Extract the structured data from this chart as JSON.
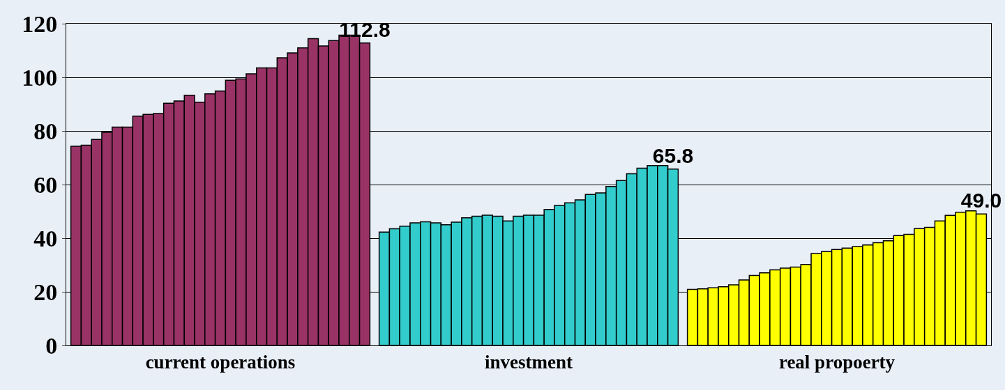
{
  "chart_data": {
    "type": "bar",
    "categories": [
      "current operations",
      "investment",
      "real propoerty"
    ],
    "ylim": [
      0,
      120
    ],
    "yticks": [
      0,
      20,
      40,
      60,
      80,
      100,
      120
    ],
    "grid": "y",
    "series": [
      {
        "colors": [
          "#993366",
          "#33cccc",
          "#ffff00"
        ],
        "values": [
          74.3,
          42.3,
          20.9
        ]
      },
      {
        "colors": [
          "#993366",
          "#33cccc",
          "#ffff00"
        ],
        "values": [
          74.7,
          43.5,
          21.1
        ]
      },
      {
        "colors": [
          "#993366",
          "#33cccc",
          "#ffff00"
        ],
        "values": [
          76.8,
          44.5,
          21.5
        ]
      },
      {
        "colors": [
          "#993366",
          "#33cccc",
          "#ffff00"
        ],
        "values": [
          79.5,
          45.7,
          21.9
        ]
      },
      {
        "colors": [
          "#993366",
          "#33cccc",
          "#ffff00"
        ],
        "values": [
          81.4,
          46.1,
          22.6
        ]
      },
      {
        "colors": [
          "#993366",
          "#33cccc",
          "#ffff00"
        ],
        "values": [
          81.4,
          45.7,
          24.4
        ]
      },
      {
        "colors": [
          "#993366",
          "#33cccc",
          "#ffff00"
        ],
        "values": [
          85.5,
          45.0,
          26.1
        ]
      },
      {
        "colors": [
          "#993366",
          "#33cccc",
          "#ffff00"
        ],
        "values": [
          86.2,
          46.0,
          27.1
        ]
      },
      {
        "colors": [
          "#993366",
          "#33cccc",
          "#ffff00"
        ],
        "values": [
          86.5,
          47.6,
          28.2
        ]
      },
      {
        "colors": [
          "#993366",
          "#33cccc",
          "#ffff00"
        ],
        "values": [
          90.3,
          48.2,
          28.8
        ]
      },
      {
        "colors": [
          "#993366",
          "#33cccc",
          "#ffff00"
        ],
        "values": [
          91.2,
          48.6,
          29.2
        ]
      },
      {
        "colors": [
          "#993366",
          "#33cccc",
          "#ffff00"
        ],
        "values": [
          93.3,
          48.2,
          30.2
        ]
      },
      {
        "colors": [
          "#993366",
          "#33cccc",
          "#ffff00"
        ],
        "values": [
          90.7,
          46.4,
          34.3
        ]
      },
      {
        "colors": [
          "#993366",
          "#33cccc",
          "#ffff00"
        ],
        "values": [
          93.8,
          48.2,
          35.0
        ]
      },
      {
        "colors": [
          "#993366",
          "#33cccc",
          "#ffff00"
        ],
        "values": [
          94.9,
          48.6,
          35.8
        ]
      },
      {
        "colors": [
          "#993366",
          "#33cccc",
          "#ffff00"
        ],
        "values": [
          98.9,
          48.6,
          36.3
        ]
      },
      {
        "colors": [
          "#993366",
          "#33cccc",
          "#ffff00"
        ],
        "values": [
          99.4,
          50.7,
          36.9
        ]
      },
      {
        "colors": [
          "#993366",
          "#33cccc",
          "#ffff00"
        ],
        "values": [
          101.3,
          52.2,
          37.5
        ]
      },
      {
        "colors": [
          "#993366",
          "#33cccc",
          "#ffff00"
        ],
        "values": [
          103.5,
          53.2,
          38.3
        ]
      },
      {
        "colors": [
          "#993366",
          "#33cccc",
          "#ffff00"
        ],
        "values": [
          103.5,
          54.3,
          39.0
        ]
      },
      {
        "colors": [
          "#993366",
          "#33cccc",
          "#ffff00"
        ],
        "values": [
          107.3,
          56.3,
          41.0
        ]
      },
      {
        "colors": [
          "#993366",
          "#33cccc",
          "#ffff00"
        ],
        "values": [
          109.1,
          56.9,
          41.4
        ]
      },
      {
        "colors": [
          "#993366",
          "#33cccc",
          "#ffff00"
        ],
        "values": [
          111.0,
          59.3,
          43.6
        ]
      },
      {
        "colors": [
          "#993366",
          "#33cccc",
          "#ffff00"
        ],
        "values": [
          114.4,
          61.5,
          44.0
        ]
      },
      {
        "colors": [
          "#993366",
          "#33cccc",
          "#ffff00"
        ],
        "values": [
          111.7,
          64.0,
          46.4
        ]
      },
      {
        "colors": [
          "#993366",
          "#33cccc",
          "#ffff00"
        ],
        "values": [
          113.7,
          66.1,
          48.5
        ]
      },
      {
        "colors": [
          "#993366",
          "#33cccc",
          "#ffff00"
        ],
        "values": [
          115.7,
          67.1,
          49.7
        ]
      },
      {
        "colors": [
          "#993366",
          "#33cccc",
          "#ffff00"
        ],
        "values": [
          115.7,
          67.1,
          50.2
        ]
      },
      {
        "colors": [
          "#993366",
          "#33cccc",
          "#ffff00"
        ],
        "values": [
          112.8,
          65.8,
          49.0
        ],
        "value_labels": [
          "112.8",
          "65.8",
          "49.0"
        ]
      }
    ]
  }
}
